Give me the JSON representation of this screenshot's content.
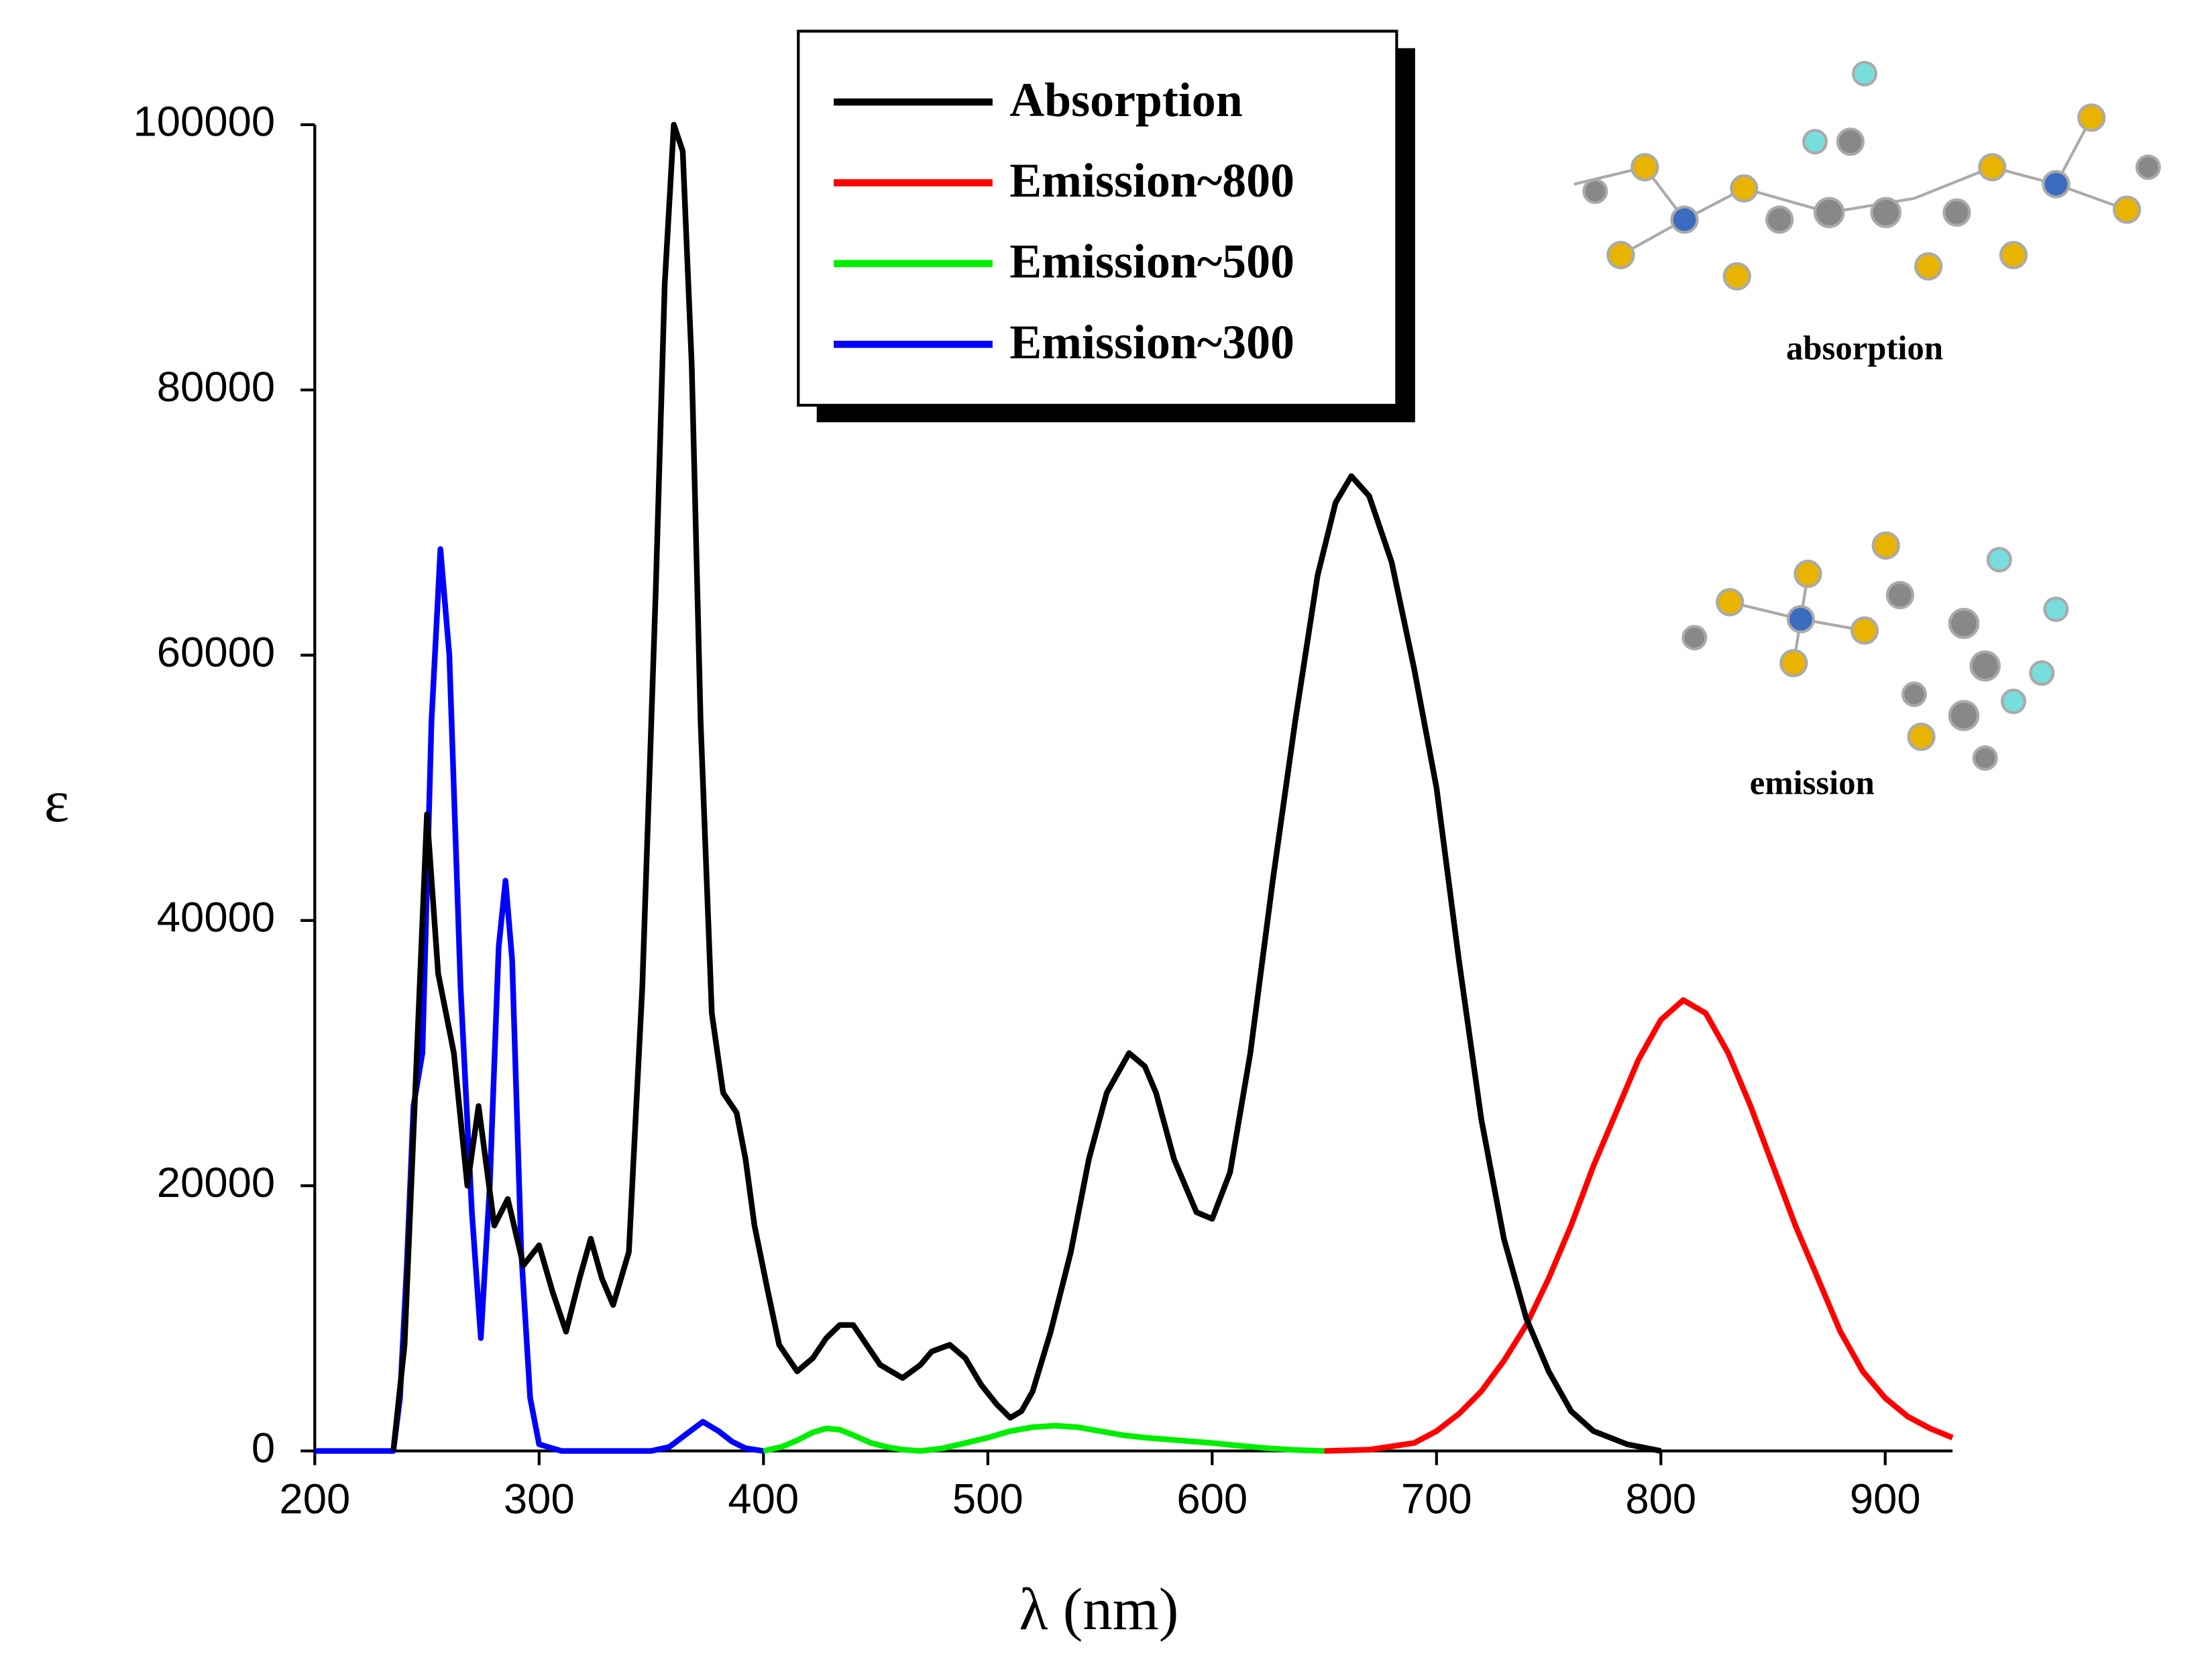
{
  "chart_data": {
    "type": "line",
    "xlabel": "λ (nm)",
    "ylabel": "ε",
    "xlim": [
      200,
      930
    ],
    "xticks": [
      200,
      300,
      400,
      500,
      600,
      700,
      800,
      900
    ],
    "ylim": [
      0,
      100000
    ],
    "yticks": [
      0,
      20000,
      40000,
      60000,
      80000,
      100000
    ],
    "legend": "top-center",
    "annotations": [
      "absorption",
      "emission"
    ],
    "series": [
      {
        "name": "Absorption",
        "color": "#000000",
        "x": [
          235,
          240,
          245,
          250,
          255,
          262,
          268,
          273,
          280,
          286,
          293,
          300,
          306,
          312,
          318,
          323,
          328,
          333,
          340,
          346,
          352,
          356,
          360,
          364,
          368,
          372,
          377,
          382,
          388,
          392,
          396,
          402,
          407,
          415,
          422,
          428,
          434,
          440,
          446,
          452,
          462,
          470,
          475,
          483,
          490,
          497,
          504,
          510,
          515,
          520,
          528,
          537,
          545,
          553,
          563,
          570,
          575,
          583,
          593,
          600,
          608,
          617,
          627,
          637,
          647,
          655,
          662,
          670,
          680,
          690,
          700,
          710,
          720,
          730,
          740,
          750,
          760,
          770,
          785,
          800
        ],
        "values": [
          0,
          8000,
          28000,
          48000,
          36000,
          30000,
          20000,
          26000,
          17000,
          19000,
          14000,
          15500,
          12000,
          9000,
          13000,
          16000,
          13000,
          11000,
          15000,
          35000,
          65000,
          88000,
          100000,
          98000,
          82000,
          55000,
          33000,
          27000,
          25500,
          22000,
          17000,
          12000,
          8000,
          6000,
          7000,
          8500,
          9500,
          9500,
          8000,
          6500,
          5500,
          6500,
          7500,
          8000,
          7000,
          5000,
          3500,
          2500,
          3000,
          4500,
          9000,
          15000,
          22000,
          27000,
          30000,
          29000,
          27000,
          22000,
          18000,
          17500,
          21000,
          30000,
          43000,
          55000,
          66000,
          71500,
          73500,
          72000,
          67000,
          59000,
          50000,
          37000,
          25000,
          16000,
          10000,
          6000,
          3000,
          1500,
          500,
          0
        ]
      },
      {
        "name": "Emission~800",
        "color": "#ff0000",
        "x": [
          650,
          670,
          690,
          700,
          710,
          720,
          730,
          740,
          750,
          760,
          770,
          780,
          790,
          800,
          810,
          820,
          830,
          840,
          850,
          860,
          870,
          880,
          890,
          900,
          910,
          920,
          930
        ],
        "values": [
          0,
          100,
          600,
          1500,
          2800,
          4500,
          6800,
          9500,
          13000,
          17000,
          21500,
          25500,
          29500,
          32500,
          34000,
          33000,
          30000,
          26000,
          21500,
          17000,
          13000,
          9000,
          6000,
          4000,
          2600,
          1700,
          1000
        ]
      },
      {
        "name": "Emission~500",
        "color": "#00ee00",
        "x": [
          400,
          408,
          415,
          422,
          428,
          434,
          440,
          448,
          455,
          462,
          470,
          480,
          490,
          500,
          510,
          520,
          530,
          540,
          550,
          560,
          570,
          585,
          600,
          612,
          625,
          637,
          650
        ],
        "values": [
          0,
          300,
          800,
          1400,
          1700,
          1600,
          1200,
          600,
          300,
          100,
          0,
          200,
          600,
          1000,
          1500,
          1800,
          1900,
          1800,
          1500,
          1200,
          1000,
          800,
          600,
          400,
          200,
          80,
          0
        ]
      },
      {
        "name": "Emission~300",
        "color": "#0000ff",
        "x": [
          200,
          235,
          238,
          241,
          244,
          248,
          252,
          256,
          260,
          265,
          270,
          274,
          278,
          282,
          285,
          288,
          292,
          296,
          300,
          310,
          350,
          358,
          365,
          373,
          380,
          386,
          392,
          400
        ],
        "values": [
          0,
          0,
          4000,
          14000,
          26000,
          30000,
          55000,
          68000,
          60000,
          35000,
          18000,
          8500,
          20000,
          38000,
          43000,
          37000,
          15000,
          4000,
          500,
          0,
          0,
          300,
          1200,
          2200,
          1500,
          700,
          200,
          0
        ]
      }
    ]
  }
}
